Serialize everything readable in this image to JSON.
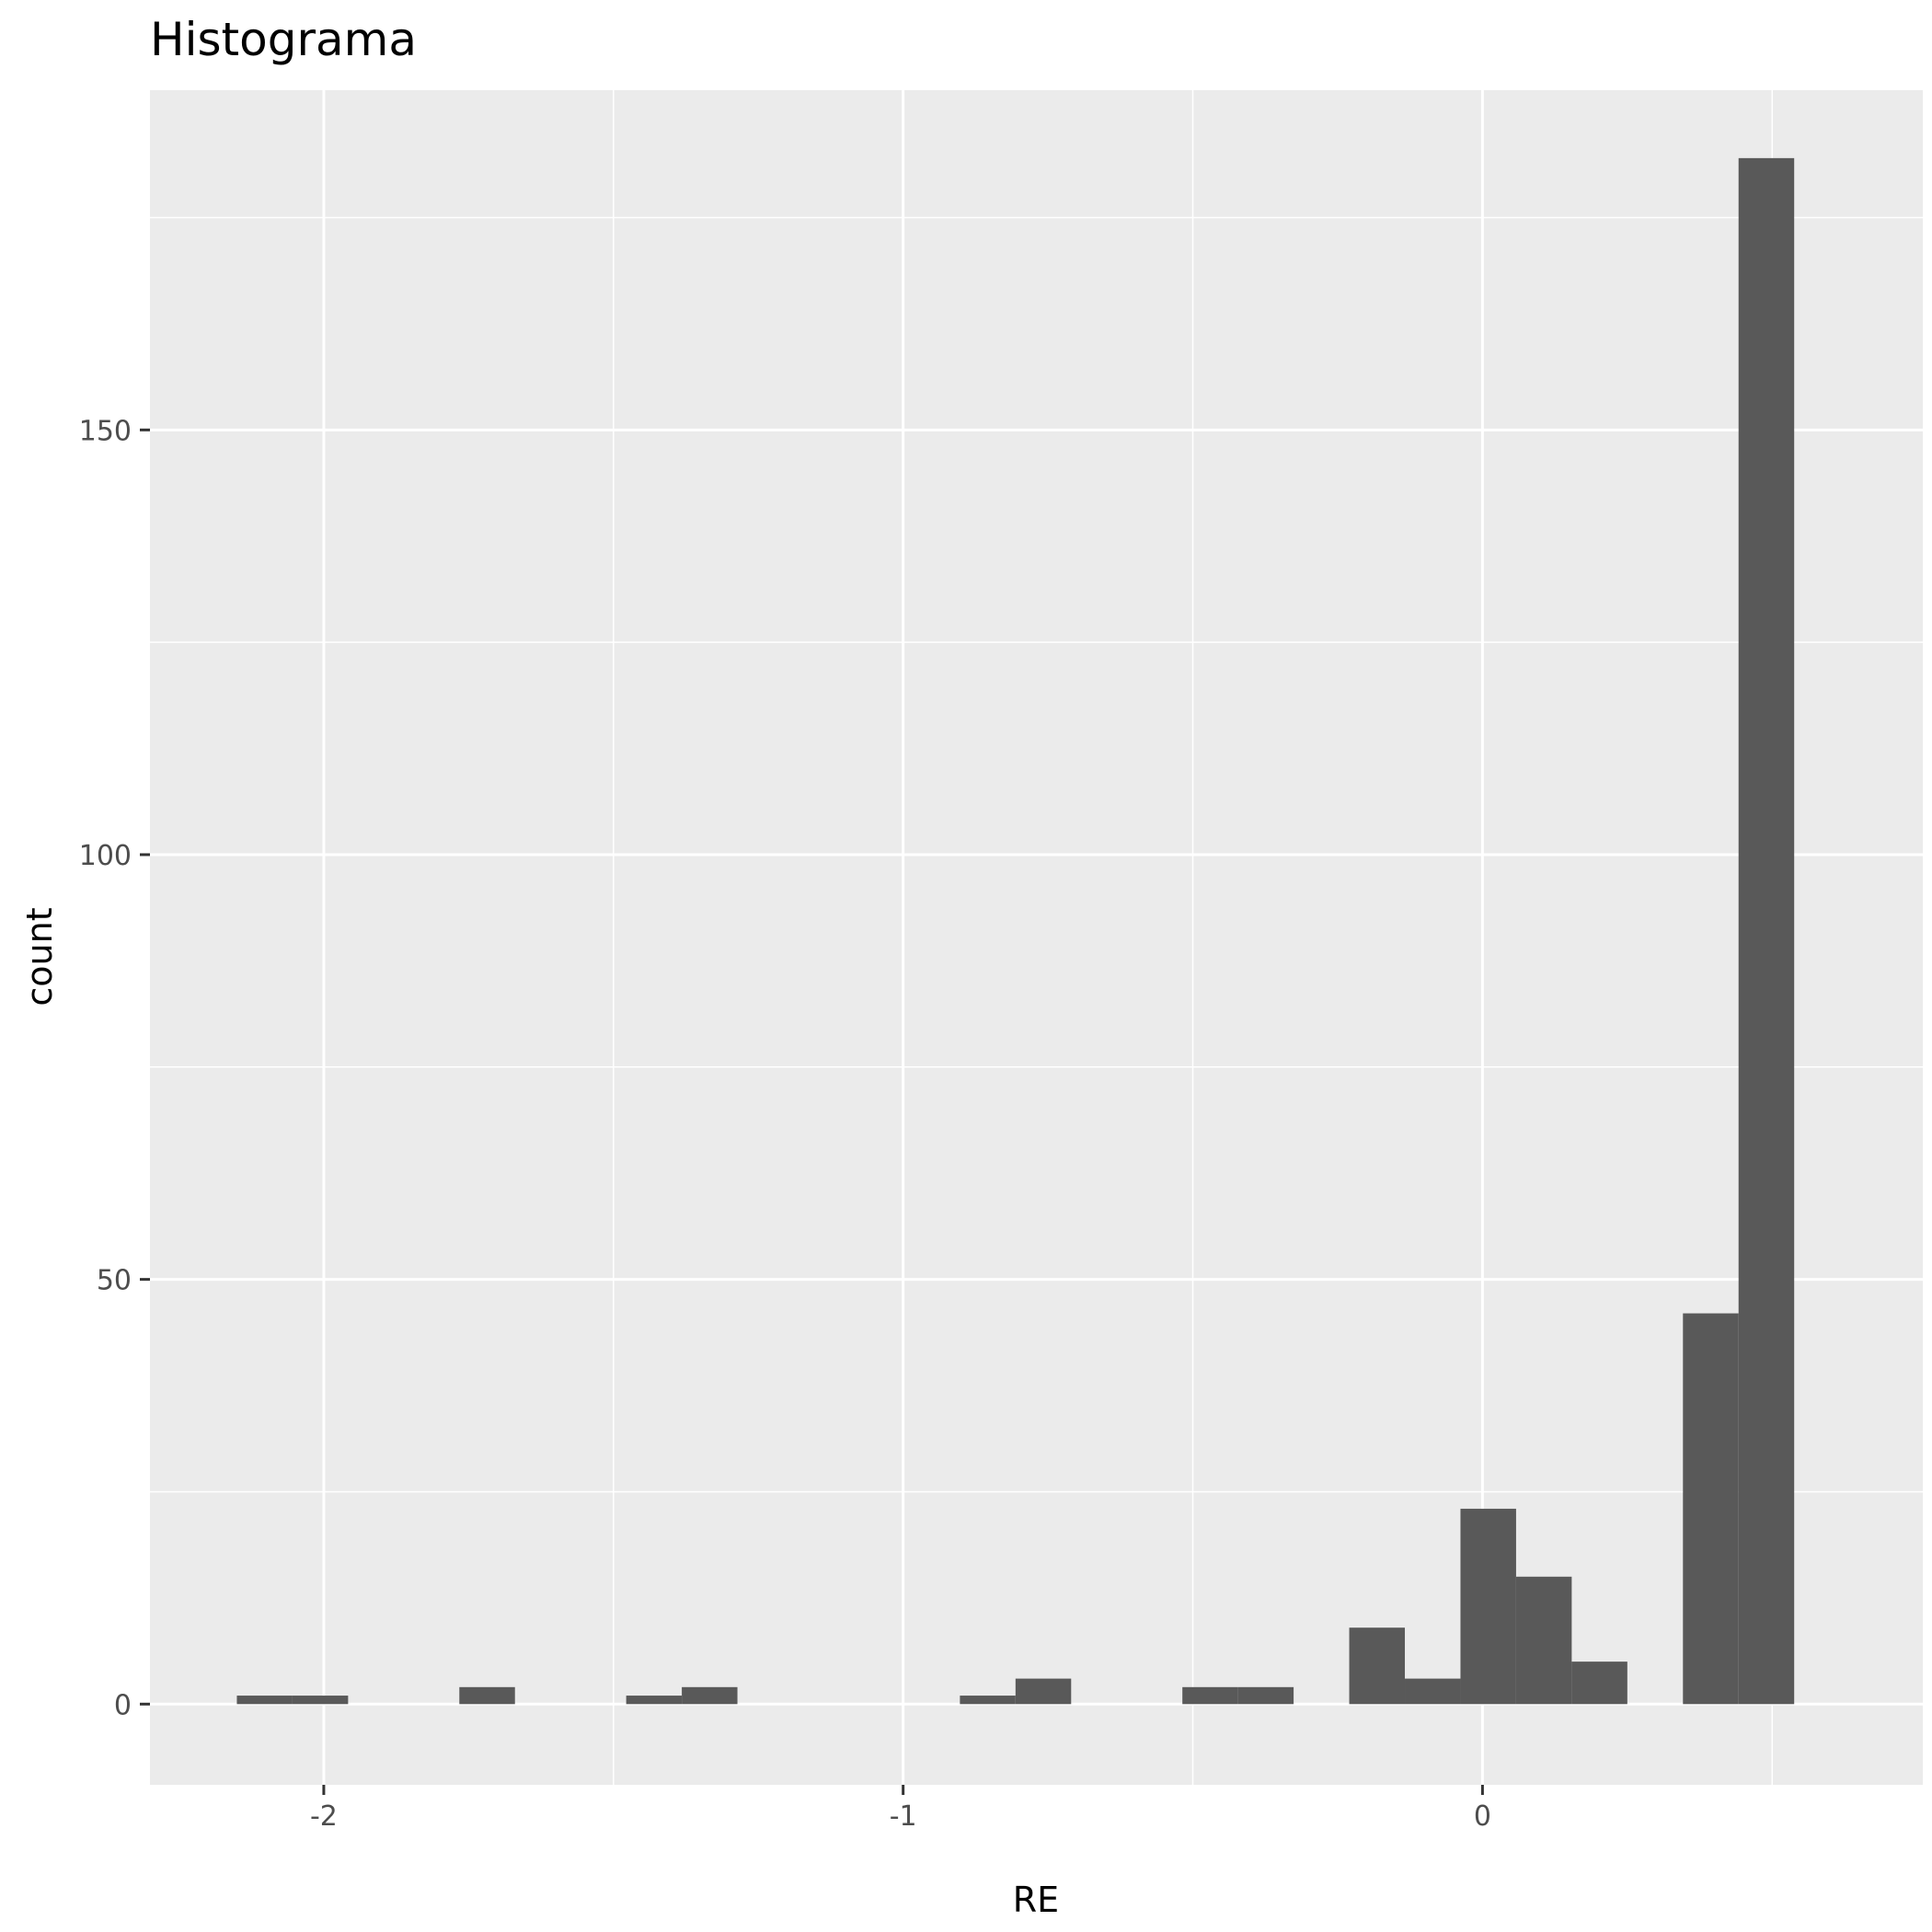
{
  "chart_data": {
    "type": "bar",
    "title": "Histograma",
    "xlabel": "RE",
    "ylabel": "count",
    "xlim": [
      -2.3,
      0.76
    ],
    "ylim": [
      -9.5,
      190
    ],
    "x_ticks": [
      -2,
      -1,
      0
    ],
    "x_tick_labels": [
      "-2",
      "-1",
      "0"
    ],
    "y_ticks": [
      0,
      50,
      100,
      150
    ],
    "y_tick_labels": [
      "0",
      "50",
      "100",
      "150"
    ],
    "x_minor_ticks": [
      -1.5,
      -0.5,
      0.5
    ],
    "y_minor_ticks": [
      25,
      75,
      125,
      175
    ],
    "grid": true,
    "legend": "none",
    "bin_width": 0.096,
    "bars": [
      {
        "x": -2.102,
        "count": 1
      },
      {
        "x": -2.006,
        "count": 1
      },
      {
        "x": -1.718,
        "count": 2
      },
      {
        "x": -1.43,
        "count": 1
      },
      {
        "x": -1.334,
        "count": 2
      },
      {
        "x": -0.854,
        "count": 1
      },
      {
        "x": -0.758,
        "count": 3
      },
      {
        "x": -0.47,
        "count": 2
      },
      {
        "x": -0.374,
        "count": 2
      },
      {
        "x": -0.182,
        "count": 9
      },
      {
        "x": -0.086,
        "count": 3
      },
      {
        "x": 0.01,
        "count": 23
      },
      {
        "x": 0.106,
        "count": 15
      },
      {
        "x": 0.202,
        "count": 5
      },
      {
        "x": 0.394,
        "count": 46
      },
      {
        "x": 0.49,
        "count": 182
      }
    ],
    "colors": {
      "panel": "#ebebeb",
      "grid": "#ffffff",
      "bar": "#595959",
      "tick_label": "#4d4d4d",
      "tick_mark": "#333333"
    }
  }
}
